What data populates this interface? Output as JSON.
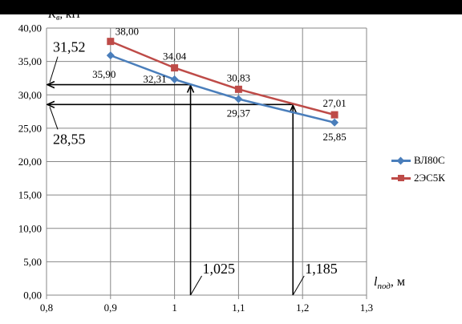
{
  "colors": {
    "series_blue": "#4a7ebb",
    "series_red": "#be4b48",
    "grid": "#878787",
    "axis": "#878787",
    "arrow": "#000000",
    "background": "#ffffff",
    "top_bar": "#000000"
  },
  "chart_data": {
    "type": "line",
    "ylabel_prefix": "K",
    "ylabel_subscript": "в",
    "ylabel_suffix": ", кН",
    "xlabel_prefix": "l",
    "xlabel_subscript": "под",
    "xlabel_suffix": ", м",
    "xlim": [
      0.8,
      1.3
    ],
    "ylim": [
      0,
      40
    ],
    "x_ticks": [
      {
        "value": 0.8,
        "label": "0,8"
      },
      {
        "value": 0.9,
        "label": "0,9"
      },
      {
        "value": 1.0,
        "label": "1"
      },
      {
        "value": 1.1,
        "label": "1,1"
      },
      {
        "value": 1.2,
        "label": "1,2"
      },
      {
        "value": 1.3,
        "label": "1,3"
      }
    ],
    "y_ticks": [
      {
        "value": 0,
        "label": "0,00"
      },
      {
        "value": 5,
        "label": "5,00"
      },
      {
        "value": 10,
        "label": "10,00"
      },
      {
        "value": 15,
        "label": "15,00"
      },
      {
        "value": 20,
        "label": "20,00"
      },
      {
        "value": 25,
        "label": "25,00"
      },
      {
        "value": 30,
        "label": "30,00"
      },
      {
        "value": 35,
        "label": "35,00"
      },
      {
        "value": 40,
        "label": "40,00"
      }
    ],
    "grid": true,
    "legend_position": "right",
    "series": [
      {
        "name": "ВЛ80С",
        "marker": "diamond",
        "color": "#4a7ebb",
        "points": [
          {
            "x": 0.9,
            "y": 35.9,
            "label": "35,90",
            "label_pos": "below-left"
          },
          {
            "x": 1.0,
            "y": 32.31,
            "label": "32,31",
            "label_pos": "left"
          },
          {
            "x": 1.1,
            "y": 29.37,
            "label": "29,37",
            "label_pos": "below"
          },
          {
            "x": 1.25,
            "y": 25.85,
            "label": "25,85",
            "label_pos": "below"
          }
        ]
      },
      {
        "name": "2ЭС5К",
        "marker": "square",
        "color": "#be4b48",
        "points": [
          {
            "x": 0.9,
            "y": 38.0,
            "label": "38,00",
            "label_pos": "above-right"
          },
          {
            "x": 1.0,
            "y": 34.04,
            "label": "34,04",
            "label_pos": "above"
          },
          {
            "x": 1.1,
            "y": 30.83,
            "label": "30,83",
            "label_pos": "above"
          },
          {
            "x": 1.25,
            "y": 27.01,
            "label": "27,01",
            "label_pos": "above"
          }
        ]
      }
    ],
    "annotations": [
      {
        "kind": "horizontal-arrow",
        "y": 31.52,
        "x_from": 1.025,
        "label": "31,52",
        "label_pos": "above"
      },
      {
        "kind": "horizontal-arrow",
        "y": 28.55,
        "x_from": 1.185,
        "label": "28,55",
        "label_pos": "below"
      },
      {
        "kind": "vertical-arrow",
        "x": 1.025,
        "y_to": 31.52,
        "label": "1,025"
      },
      {
        "kind": "vertical-arrow",
        "x": 1.185,
        "y_to": 28.55,
        "label": "1,185"
      }
    ]
  }
}
